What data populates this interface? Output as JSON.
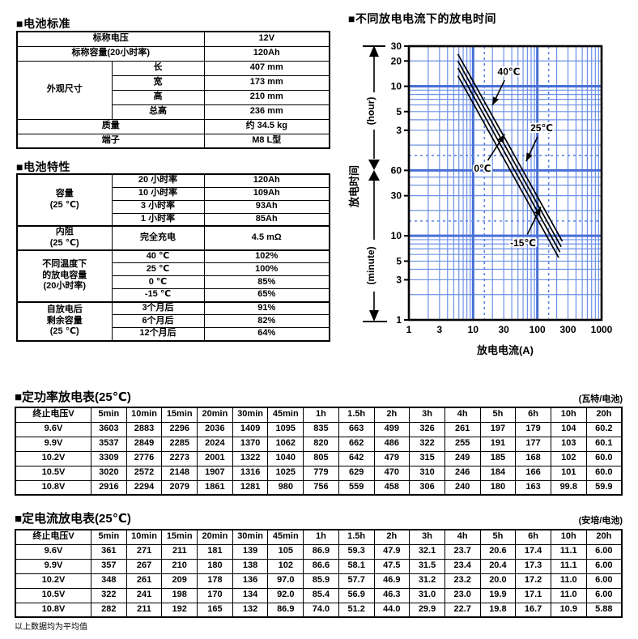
{
  "section_standard": {
    "title": "■电池标准",
    "rows": {
      "nominal_voltage_label": "标称电压",
      "nominal_voltage_value": "12V",
      "nominal_capacity_label": "标称容量(20小时率)",
      "nominal_capacity_value": "120Ah",
      "dimensions_label": "外观尺寸",
      "length_label": "长",
      "length_value": "407 mm",
      "width_label": "宽",
      "width_value": "173 mm",
      "height_label": "高",
      "height_value": "210 mm",
      "total_height_label": "总高",
      "total_height_value": "236 mm",
      "weight_label": "质量",
      "weight_value": "约 34.5 kg",
      "terminal_label": "端子",
      "terminal_value": "M8 L型"
    }
  },
  "section_characteristics": {
    "title": "■电池特性",
    "capacity": {
      "label": "容量\n(25 ℃)",
      "rows": [
        [
          "20 小时率",
          "120Ah"
        ],
        [
          "10 小时率",
          "109Ah"
        ],
        [
          "3 小时率",
          "93Ah"
        ],
        [
          "1 小时率",
          "85Ah"
        ]
      ]
    },
    "internal_resistance": {
      "label": "内阻\n(25 ℃)",
      "condition": "完全充电",
      "value": "4.5 mΩ"
    },
    "temperature_capacity": {
      "label": "不同温度下\n的放电容量\n(20小时率)",
      "rows": [
        [
          "40 ℃",
          "102%"
        ],
        [
          "25 ℃",
          "100%"
        ],
        [
          "0 ℃",
          "85%"
        ],
        [
          "-15 ℃",
          "65%"
        ]
      ]
    },
    "self_discharge": {
      "label": "自放电后\n剩余容量\n(25 ℃)",
      "rows": [
        [
          "3个月后",
          "91%"
        ],
        [
          "6个月后",
          "82%"
        ],
        [
          "12个月后",
          "64%"
        ]
      ]
    }
  },
  "chart_data": {
    "type": "line",
    "title": "■不同放电电流下的放电时间",
    "xlabel": "放电电流(A)",
    "ylabel": "放电时间",
    "y_unit_upper": "(hour)",
    "y_unit_lower": "(minute)",
    "x_scale": "log",
    "y_scale": "log",
    "grid": true,
    "grid_color": "#6d90e6",
    "grid_major_color": "#486fd6",
    "dashed_color": "#5b82e4",
    "xlim": [
      1,
      1000
    ],
    "ylim_minutes": [
      1,
      1800
    ],
    "x_tick_labels": [
      "1",
      "3",
      "10",
      "30",
      "100",
      "300",
      "1000"
    ],
    "x_tick_values": [
      1,
      3,
      10,
      30,
      100,
      300,
      1000
    ],
    "y_ticks_hours": {
      "labels": [
        "30",
        "20",
        "10",
        "5",
        "3"
      ],
      "values_minutes": [
        1800,
        1200,
        600,
        300,
        180
      ]
    },
    "y_ticks_minutes": {
      "labels": [
        "60",
        "30",
        "10",
        "5",
        "3",
        "1"
      ],
      "values_minutes": [
        60,
        30,
        10,
        5,
        3,
        1
      ]
    },
    "reference_lines_dashed": {
      "x_amps": [
        15,
        150
      ],
      "y_minutes": [
        90,
        15
      ]
    },
    "series": [
      {
        "name": "40℃",
        "points_amp_min": [
          [
            5.8,
            1450
          ],
          [
            245,
            8.6
          ]
        ]
      },
      {
        "name": "25℃",
        "points_amp_min": [
          [
            5.8,
            1200
          ],
          [
            235,
            7.4
          ]
        ]
      },
      {
        "name": "0℃",
        "points_amp_min": [
          [
            5.8,
            990
          ],
          [
            225,
            6.4
          ]
        ]
      },
      {
        "name": "-15℃",
        "points_amp_min": [
          [
            5.8,
            800
          ],
          [
            215,
            5.5
          ]
        ]
      }
    ],
    "annotations": [
      {
        "text": "40℃",
        "label_at": [
          36,
          900
        ],
        "arrow_to": [
          20,
          357
        ]
      },
      {
        "text": "25℃",
        "label_at": [
          117,
          192
        ],
        "arrow_to": [
          67,
          77
        ]
      },
      {
        "text": "0℃",
        "label_at": [
          14,
          63
        ],
        "arrow_to": [
          31,
          161
        ]
      },
      {
        "text": "-15℃",
        "label_at": [
          60,
          8.2
        ],
        "arrow_to": [
          113,
          22
        ]
      }
    ]
  },
  "power_table": {
    "title": "■定功率放电表(25℃)",
    "unit_note": "(瓦特/电池)",
    "voltage_header": "终止电压V",
    "time_headers": [
      "5min",
      "10min",
      "15min",
      "20min",
      "30min",
      "45min",
      "1h",
      "1.5h",
      "2h",
      "3h",
      "4h",
      "5h",
      "6h",
      "10h",
      "20h"
    ],
    "rows": [
      {
        "voltage": "9.6V",
        "values": [
          "3603",
          "2883",
          "2296",
          "2036",
          "1409",
          "1095",
          "835",
          "663",
          "499",
          "326",
          "261",
          "197",
          "179",
          "104",
          "60.2"
        ]
      },
      {
        "voltage": "9.9V",
        "values": [
          "3537",
          "2849",
          "2285",
          "2024",
          "1370",
          "1062",
          "820",
          "662",
          "486",
          "322",
          "255",
          "191",
          "177",
          "103",
          "60.1"
        ]
      },
      {
        "voltage": "10.2V",
        "values": [
          "3309",
          "2776",
          "2273",
          "2001",
          "1322",
          "1040",
          "805",
          "642",
          "479",
          "315",
          "249",
          "185",
          "168",
          "102",
          "60.0"
        ]
      },
      {
        "voltage": "10.5V",
        "values": [
          "3020",
          "2572",
          "2148",
          "1907",
          "1316",
          "1025",
          "779",
          "629",
          "470",
          "310",
          "246",
          "184",
          "166",
          "101",
          "60.0"
        ]
      },
      {
        "voltage": "10.8V",
        "values": [
          "2916",
          "2294",
          "2079",
          "1861",
          "1281",
          "980",
          "756",
          "559",
          "458",
          "306",
          "240",
          "180",
          "163",
          "99.8",
          "59.9"
        ]
      }
    ]
  },
  "current_table": {
    "title": "■定电流放电表(25℃)",
    "unit_note": "(安培/电池)",
    "voltage_header": "终止电压V",
    "time_headers": [
      "5min",
      "10min",
      "15min",
      "20min",
      "30min",
      "45min",
      "1h",
      "1.5h",
      "2h",
      "3h",
      "4h",
      "5h",
      "6h",
      "10h",
      "20h"
    ],
    "rows": [
      {
        "voltage": "9.6V",
        "values": [
          "361",
          "271",
          "211",
          "181",
          "139",
          "105",
          "86.9",
          "59.3",
          "47.9",
          "32.1",
          "23.7",
          "20.6",
          "17.4",
          "11.1",
          "6.00"
        ]
      },
      {
        "voltage": "9.9V",
        "values": [
          "357",
          "267",
          "210",
          "180",
          "138",
          "102",
          "86.6",
          "58.1",
          "47.5",
          "31.5",
          "23.4",
          "20.4",
          "17.3",
          "11.1",
          "6.00"
        ]
      },
      {
        "voltage": "10.2V",
        "values": [
          "348",
          "261",
          "209",
          "178",
          "136",
          "97.0",
          "85.9",
          "57.7",
          "46.9",
          "31.2",
          "23.2",
          "20.0",
          "17.2",
          "11.0",
          "6.00"
        ]
      },
      {
        "voltage": "10.5V",
        "values": [
          "322",
          "241",
          "198",
          "170",
          "134",
          "92.0",
          "85.4",
          "56.9",
          "46.3",
          "31.0",
          "23.0",
          "19.9",
          "17.1",
          "11.0",
          "6.00"
        ]
      },
      {
        "voltage": "10.8V",
        "values": [
          "282",
          "211",
          "192",
          "165",
          "132",
          "86.9",
          "74.0",
          "51.2",
          "44.0",
          "29.9",
          "22.7",
          "19.8",
          "16.7",
          "10.9",
          "5.88"
        ]
      }
    ]
  },
  "footnote": "以上数据均为平均值"
}
